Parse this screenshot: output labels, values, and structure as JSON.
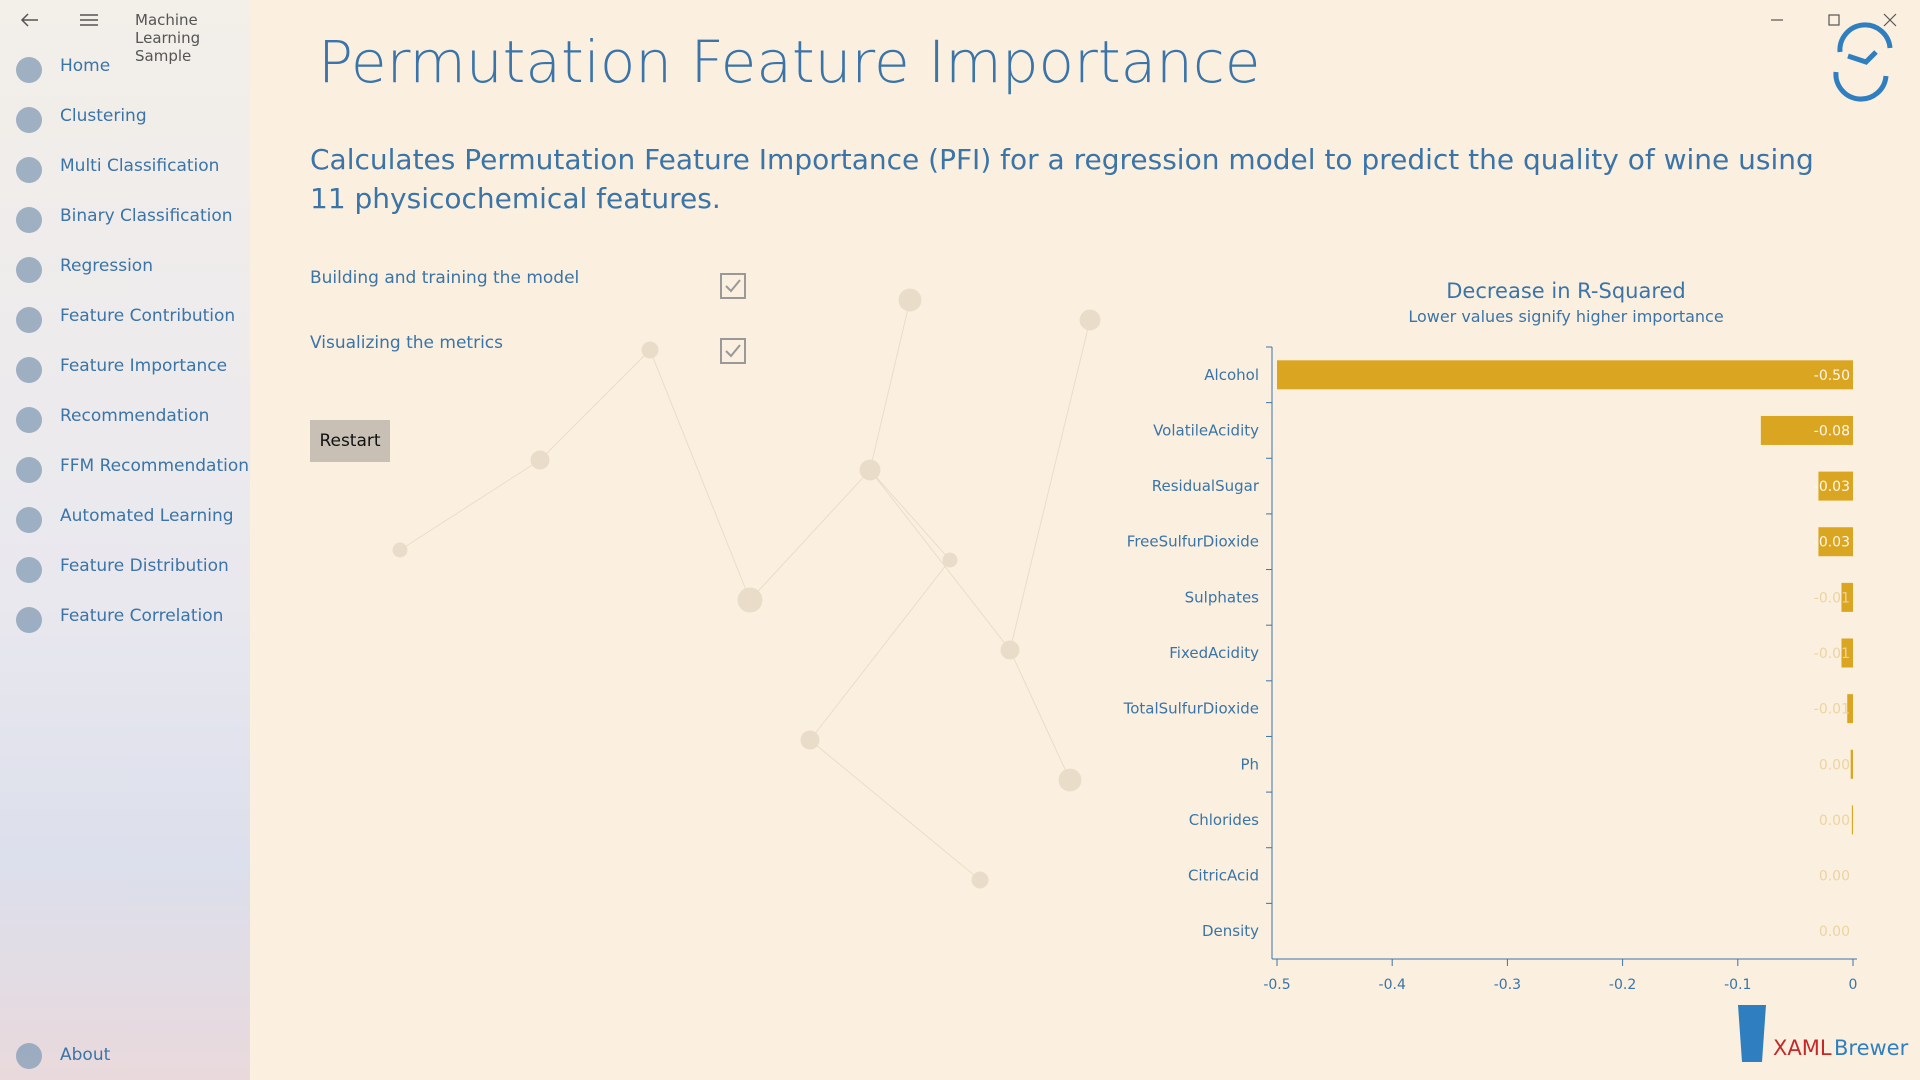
{
  "app_title": "Machine Learning Sample",
  "nav": [
    "Home",
    "Clustering",
    "Multi Classification",
    "Binary Classification",
    "Regression",
    "Feature Contribution",
    "Feature Importance",
    "Recommendation",
    "FFM Recommendation",
    "Automated Learning",
    "Feature Distribution",
    "Feature Correlation"
  ],
  "about": "About",
  "page_title": "Permutation Feature Importance",
  "description": "Calculates Permutation Feature Importance (PFI) for a regression model to predict the quality of wine using 11 physicochemical features.",
  "steps": [
    "Building and training the model",
    "Visualizing the metrics"
  ],
  "button": "Restart",
  "logo": {
    "brand": "XAML",
    "name": "Brewer"
  },
  "chart_data": {
    "type": "hbar",
    "title": "Decrease in R-Squared",
    "subtitle": "Lower values signify higher importance",
    "categories": [
      "Alcohol",
      "VolatileAcidity",
      "ResidualSugar",
      "FreeSulfurDioxide",
      "Sulphates",
      "FixedAcidity",
      "TotalSulfurDioxide",
      "Ph",
      "Chlorides",
      "CitricAcid",
      "Density"
    ],
    "values": [
      -0.5,
      -0.08,
      -0.03,
      -0.03,
      -0.01,
      -0.01,
      -0.005,
      -0.002,
      -0.001,
      0,
      0
    ],
    "value_labels": [
      "-0.50",
      "-0.08",
      "-0.03",
      "-0.03",
      "-0.01",
      "-0.01",
      "-0.01",
      "0.00",
      "0.00",
      "0.00",
      "0.00"
    ],
    "color": "#daa520",
    "xlim": [
      -0.5,
      0
    ],
    "xticks": [
      -0.5,
      -0.4,
      -0.3,
      -0.2,
      -0.1,
      0
    ]
  }
}
